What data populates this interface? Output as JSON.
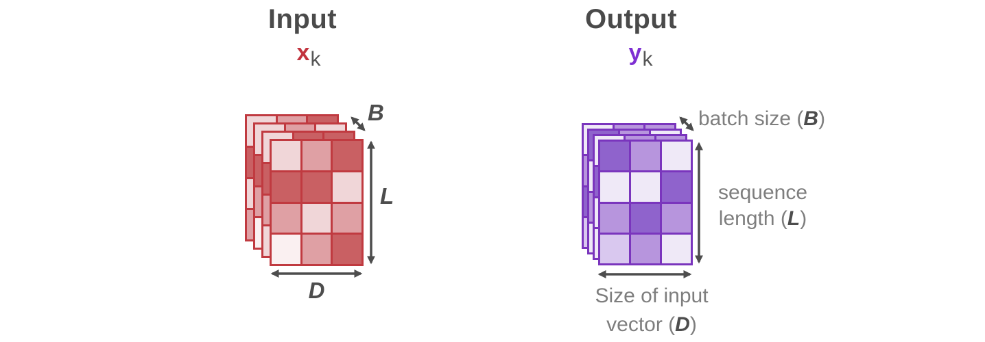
{
  "panels": {
    "input": {
      "title": "Input",
      "symbol": {
        "letter": "x",
        "subscript": "k"
      },
      "dims": {
        "batch": "B",
        "length": "L",
        "depth": "D"
      }
    },
    "output": {
      "title": "Output",
      "symbol": {
        "letter": "y",
        "subscript": "k"
      },
      "labels": {
        "batch": {
          "prefix": "batch size (",
          "dim": "B",
          "suffix": ")"
        },
        "length": {
          "line1": "sequence",
          "prefix": "length (",
          "dim": "L",
          "suffix": ")"
        },
        "depth": {
          "line1": "Size of input",
          "prefix": "vector (",
          "dim": "D",
          "suffix": ")"
        }
      }
    }
  },
  "palette": {
    "red": {
      "border": "#c03a40",
      "dark": "#c96063",
      "medium": "#dfa0a4",
      "light": "#f0d6d8",
      "lightest": "#faf0f1",
      "symbol": "#c2333e"
    },
    "purple": {
      "border": "#7a35bd",
      "dark": "#8f63cc",
      "medium": "#b795dd",
      "light": "#d9c8ef",
      "lightest": "#efe9f7",
      "symbol": "#7e2fd2"
    },
    "text_dark": "#4d4d4d",
    "text_gray": "#7e7e7e",
    "arrow": "#4d4d4d"
  },
  "tensors": {
    "input": {
      "color": "red",
      "layers": [
        [
          [
            "light",
            "medium",
            "dark"
          ],
          [
            "dark",
            "dark",
            "light"
          ],
          [
            "light",
            "light",
            "medium"
          ],
          [
            "medium",
            "medium",
            "dark"
          ]
        ],
        [
          [
            "light",
            "medium",
            "light"
          ],
          [
            "dark",
            "dark",
            "light"
          ],
          [
            "medium",
            "light",
            "medium"
          ],
          [
            "lightest",
            "medium",
            "dark"
          ]
        ],
        [
          [
            "light",
            "dark",
            "dark"
          ],
          [
            "dark",
            "dark",
            "light"
          ],
          [
            "medium",
            "light",
            "medium"
          ],
          [
            "light",
            "medium",
            "dark"
          ]
        ],
        [
          [
            "light",
            "medium",
            "dark"
          ],
          [
            "dark",
            "dark",
            "light"
          ],
          [
            "medium",
            "light",
            "medium"
          ],
          [
            "lightest",
            "medium",
            "dark"
          ]
        ]
      ]
    },
    "output": {
      "color": "purple",
      "layers": [
        [
          [
            "lightest",
            "medium",
            "medium"
          ],
          [
            "medium",
            "lightest",
            "dark"
          ],
          [
            "dark",
            "dark",
            "medium"
          ],
          [
            "light",
            "medium",
            "lightest"
          ]
        ],
        [
          [
            "dark",
            "medium",
            "lightest"
          ],
          [
            "lightest",
            "lightest",
            "dark"
          ],
          [
            "medium",
            "dark",
            "medium"
          ],
          [
            "lightest",
            "medium",
            "lightest"
          ]
        ],
        [
          [
            "lightest",
            "medium",
            "medium"
          ],
          [
            "dark",
            "lightest",
            "dark"
          ],
          [
            "lightest",
            "dark",
            "medium"
          ],
          [
            "lightest",
            "medium",
            "lightest"
          ]
        ],
        [
          [
            "dark",
            "medium",
            "lightest"
          ],
          [
            "lightest",
            "lightest",
            "dark"
          ],
          [
            "medium",
            "dark",
            "medium"
          ],
          [
            "light",
            "medium",
            "lightest"
          ]
        ]
      ]
    }
  }
}
